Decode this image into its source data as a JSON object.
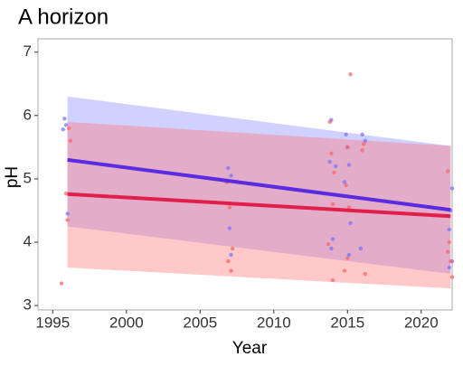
{
  "chart_data": {
    "type": "scatter",
    "title": "A horizon",
    "xlabel": "Year",
    "ylabel": "pH",
    "xlim": [
      1994,
      2022.1
    ],
    "ylim": [
      2.93,
      7.21
    ],
    "xticks": [
      1995,
      2000,
      2005,
      2010,
      2015,
      2020
    ],
    "yticks": [
      3,
      4,
      5,
      6,
      7
    ],
    "series": [
      {
        "color": "#7070ff",
        "line_color": "#5a2be0",
        "band_color": "#8c8cff",
        "x": [
          1995.8,
          1995.9,
          1995.7,
          1996.0,
          2006.9,
          2007.1,
          2006.8,
          2007.0,
          2007.1,
          2013.9,
          2013.8,
          2014.2,
          2014.0,
          2013.9,
          2014.9,
          2015.0,
          2015.1,
          2014.8,
          2015.2,
          2015.1,
          2016.0,
          2016.2,
          2015.9,
          2022.1,
          2022.0,
          2021.9,
          2022.1,
          2021.9
        ],
        "values": [
          5.95,
          5.85,
          5.78,
          4.45,
          5.17,
          5.05,
          4.95,
          4.22,
          3.8,
          5.93,
          5.27,
          5.2,
          4.05,
          3.9,
          5.7,
          5.5,
          5.22,
          4.95,
          4.3,
          3.8,
          5.7,
          5.6,
          3.9,
          4.85,
          4.5,
          4.2,
          3.7,
          3.6
        ],
        "fit": {
          "x": [
            1996,
            2022
          ],
          "y": [
            5.3,
            4.51
          ],
          "upper": [
            6.3,
            5.52
          ],
          "lower": [
            4.25,
            3.5
          ]
        }
      },
      {
        "color": "#ff6060",
        "line_color": "#e0204a",
        "band_color": "#ff7878",
        "x": [
          1996.1,
          1996.2,
          1995.9,
          1996.0,
          1995.6,
          2006.8,
          2007.0,
          2007.2,
          2006.9,
          2007.1,
          2013.8,
          2013.9,
          2014.1,
          2014.0,
          2013.7,
          2014.0,
          2015.2,
          2015.0,
          2014.9,
          2015.1,
          2015.0,
          2014.8,
          2016.1,
          2016.0,
          2016.2,
          2021.8,
          2021.9,
          2021.8,
          2022.0,
          2022.1
        ],
        "values": [
          5.8,
          5.6,
          4.77,
          4.35,
          3.35,
          4.95,
          4.55,
          3.9,
          3.7,
          3.55,
          5.9,
          5.4,
          5.1,
          4.6,
          3.97,
          3.4,
          6.65,
          5.5,
          4.9,
          4.55,
          3.75,
          3.55,
          5.55,
          5.45,
          3.5,
          5.12,
          4.0,
          3.85,
          3.7,
          3.45
        ],
        "fit": {
          "x": [
            1996,
            2022
          ],
          "y": [
            4.76,
            4.41
          ],
          "upper": [
            5.9,
            5.52
          ],
          "lower": [
            3.6,
            3.27
          ]
        }
      }
    ]
  }
}
